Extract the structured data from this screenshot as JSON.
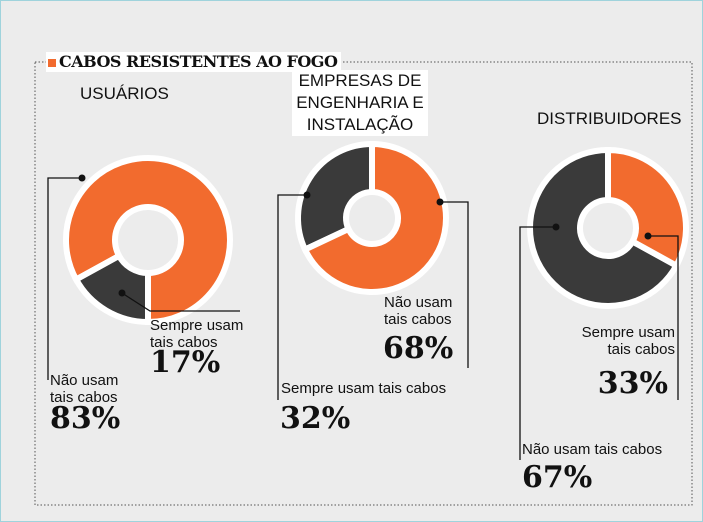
{
  "title": "CABOS RESISTENTES AO FOGO",
  "chart_data": [
    {
      "type": "pie",
      "title": "USUÁRIOS",
      "categories": [
        "Sempre usam tais cabos",
        "Não usam tais cabos"
      ],
      "values": [
        17,
        83
      ],
      "value_labels": [
        "17%",
        "83%"
      ],
      "colors": [
        "#3a3a3a",
        "#f26b2e"
      ]
    },
    {
      "type": "pie",
      "title": "EMPRESAS DE ENGENHARIA E INSTALAÇÃO",
      "categories": [
        "Não usam tais cabos",
        "Sempre usam tais cabos"
      ],
      "values": [
        68,
        32
      ],
      "value_labels": [
        "68%",
        "32%"
      ],
      "colors": [
        "#f26b2e",
        "#3a3a3a"
      ]
    },
    {
      "type": "pie",
      "title": "DISTRIBUIDORES",
      "categories": [
        "Sempre usam tais cabos",
        "Não usam tais cabos"
      ],
      "values": [
        33,
        67
      ],
      "value_labels": [
        "33%",
        "67%"
      ],
      "colors": [
        "#f26b2e",
        "#3a3a3a"
      ]
    }
  ]
}
